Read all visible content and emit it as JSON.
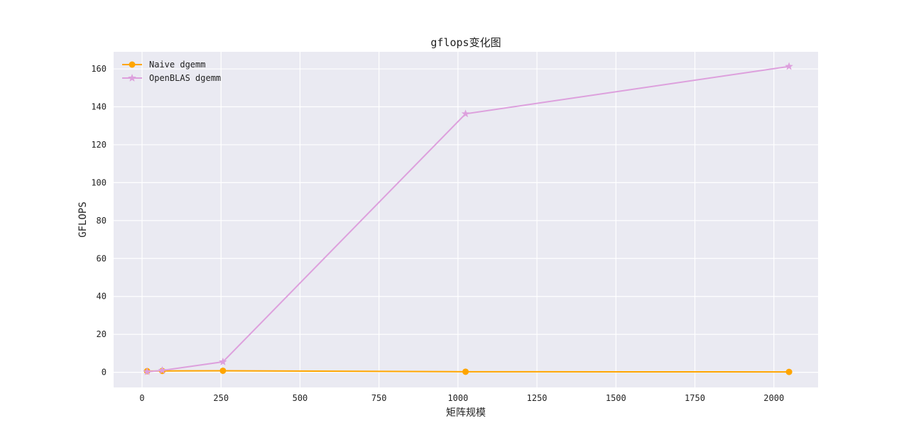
{
  "chart_data": {
    "type": "line",
    "title": "gflops变化图",
    "xlabel": "矩阵规模",
    "ylabel": "GFLOPS",
    "xlim": [
      -90,
      2140
    ],
    "ylim": [
      -8,
      169
    ],
    "xticks": [
      0,
      250,
      500,
      750,
      1000,
      1250,
      1500,
      1750,
      2000
    ],
    "yticks": [
      0,
      20,
      40,
      60,
      80,
      100,
      120,
      140,
      160
    ],
    "grid": true,
    "legend_position": "top-left",
    "series": [
      {
        "name": "Naive dgemm",
        "color": "#FFA500",
        "marker": "circle",
        "x": [
          16,
          64,
          256,
          1024,
          2048
        ],
        "y": [
          0.6,
          0.7,
          0.8,
          0.3,
          0.2
        ]
      },
      {
        "name": "OpenBLAS dgemm",
        "color": "#DDA0DD",
        "marker": "star",
        "x": [
          16,
          64,
          256,
          1024,
          2048
        ],
        "y": [
          0.3,
          1.0,
          5.5,
          136.3,
          161.3
        ]
      }
    ]
  }
}
